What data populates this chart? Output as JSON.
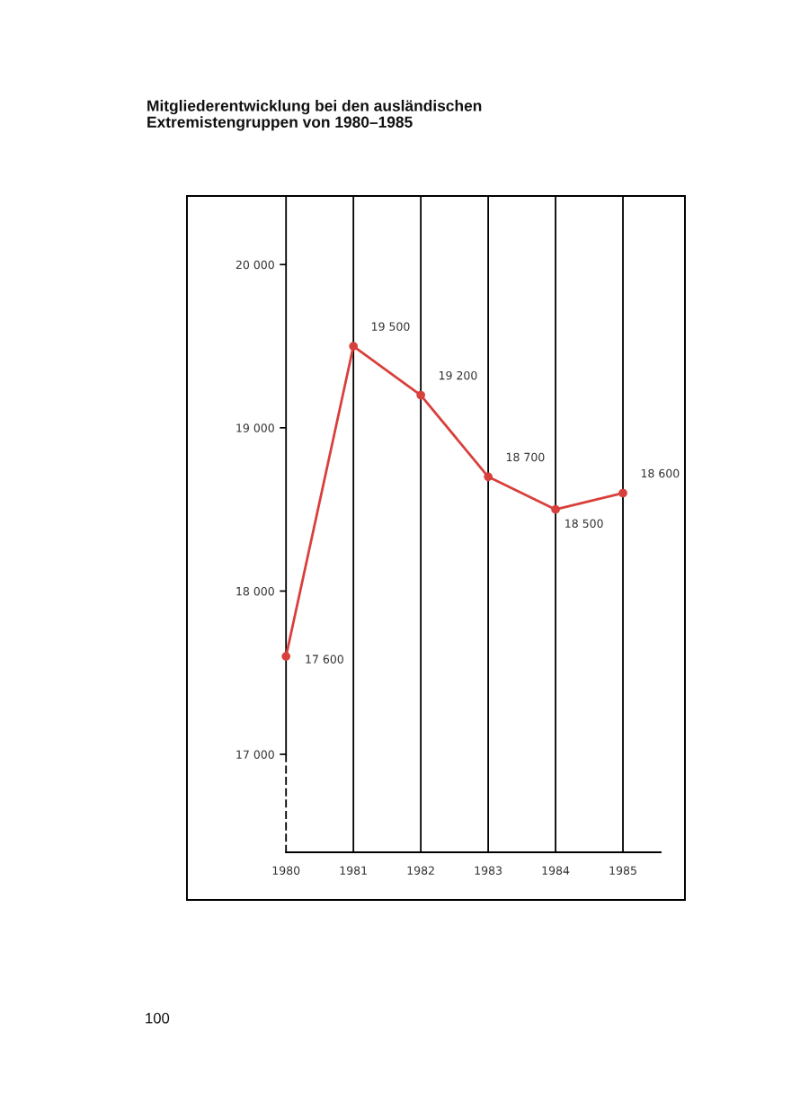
{
  "chart_data": {
    "type": "line",
    "title": "Mitgliederentwicklung bei den ausländischen\nExtremistengruppen von 1980–1985",
    "categories": [
      "1980",
      "1981",
      "1982",
      "1983",
      "1984",
      "1985"
    ],
    "values": [
      17600,
      19500,
      19200,
      18700,
      18500,
      18600
    ],
    "value_labels": [
      "17 600",
      "19 500",
      "19 200",
      "18 700",
      "18 500",
      "18 600"
    ],
    "color": "#d8403c",
    "marker": "circle",
    "line_style": "solid",
    "grid": "x",
    "ylim": [
      16400,
      20420
    ],
    "yticks": [
      {
        "value": 17000,
        "label": "17 000"
      },
      {
        "value": 18000,
        "label": "18 000"
      },
      {
        "value": 19000,
        "label": "19 000"
      },
      {
        "value": 20000,
        "label": "20 000"
      }
    ],
    "annotations": [
      "100"
    ]
  }
}
